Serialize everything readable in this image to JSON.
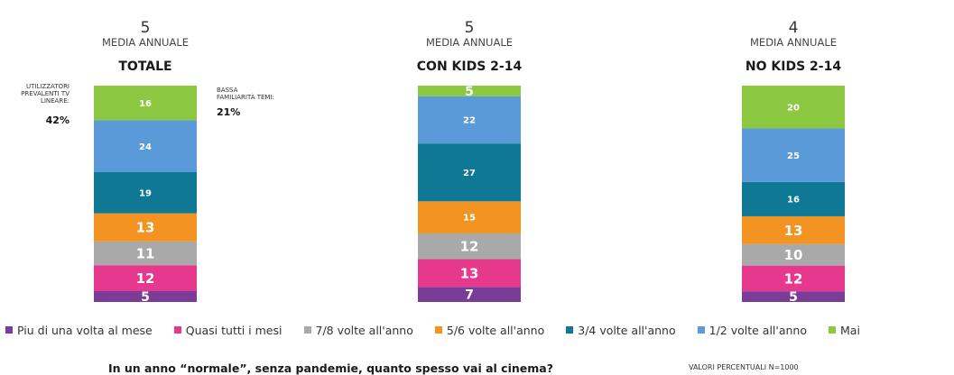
{
  "chart_data": {
    "type": "bar",
    "stacked": true,
    "categories": [
      "TOTALE",
      "CON KIDS 2-14",
      "NO KIDS 2-14"
    ],
    "header_values": [
      "5",
      "5",
      "4"
    ],
    "header_caption": "MEDIA ANNUALE",
    "series": [
      {
        "name": "Piu di una volta al mese",
        "color": "#7a3d97",
        "values": [
          5,
          7,
          5
        ]
      },
      {
        "name": "Quasi tutti i mesi",
        "color": "#e6398d",
        "values": [
          12,
          13,
          12
        ]
      },
      {
        "name": "7/8 volte all'anno",
        "color": "#a9a9a9",
        "values": [
          11,
          12,
          10
        ]
      },
      {
        "name": "5/6 volte all'anno",
        "color": "#f39322",
        "values": [
          13,
          15,
          13
        ]
      },
      {
        "name": "3/4 volte all'anno",
        "color": "#0f7895",
        "values": [
          19,
          27,
          16
        ]
      },
      {
        "name": "1/2 volte all'anno",
        "color": "#5a9ad8",
        "values": [
          24,
          22,
          25
        ]
      },
      {
        "name": "Mai",
        "color": "#8dc843",
        "values": [
          16,
          5,
          20
        ]
      }
    ],
    "annotations": {
      "left_label": [
        "UTILIZZATORI",
        "PREVALENTI TV",
        "LINEARE:"
      ],
      "left_value": "42%",
      "right_label": [
        "BASSA",
        "FAMILIARITÀ TEMI:"
      ],
      "right_value": "21%"
    }
  },
  "footer": {
    "question": "In un anno “normale”, senza pandemie, quanto spesso vai al cinema?",
    "note": "VALORI PERCENTUALI N=1000"
  }
}
